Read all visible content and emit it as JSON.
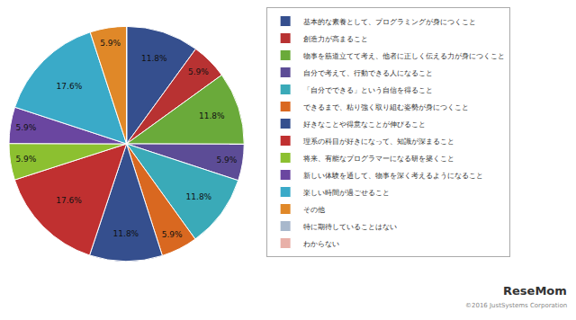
{
  "chart_data": {
    "type": "pie",
    "categories": [
      "基本的な素養として、プログラミングが身につくこと",
      "創造力が高まること",
      "物事を筋道立てて考え、他者に正しく伝える力が身につくこと",
      "自分で考えて、行動できる人になること",
      "「自分でできる」という自信を得ること",
      "できるまで、粘り強く取り組む姿勢が身につくこと",
      "好きなことや得意なことが伸びること",
      "理系の科目が好きになって、知識が深まること",
      "将来、有能なプログラマーになる研を築くこと",
      "新しい体験を通して、物事を深く考えるようになること",
      "楽しい時間が過ごせること",
      "その他",
      "特に期待していることはない",
      "わからない"
    ],
    "values": [
      11.8,
      5.9,
      11.8,
      5.9,
      11.8,
      5.9,
      11.8,
      17.6,
      5.9,
      5.9,
      17.6,
      5.9,
      0.0,
      0.0
    ],
    "value_labels": [
      "11.8%",
      "5.9%",
      "11.8%",
      "5.9%",
      "11.8%",
      "5.9%",
      "11.8%",
      "17.6%",
      "5.9%",
      "5.9%",
      "17.6%",
      "5.9%",
      null,
      null
    ],
    "colors": [
      "#354f8e",
      "#b83232",
      "#6aaa3a",
      "#5c4c96",
      "#3aaab8",
      "#d96820",
      "#354f8e",
      "#c03030",
      "#8cc030",
      "#6a46a0",
      "#3aaac8",
      "#e08828",
      "#a8b8cc",
      "#e8b0a8"
    ],
    "data_labels": true,
    "legend": "right",
    "annotations": [
      "ReseMom",
      "©2016 JustSystems Corporation"
    ]
  }
}
